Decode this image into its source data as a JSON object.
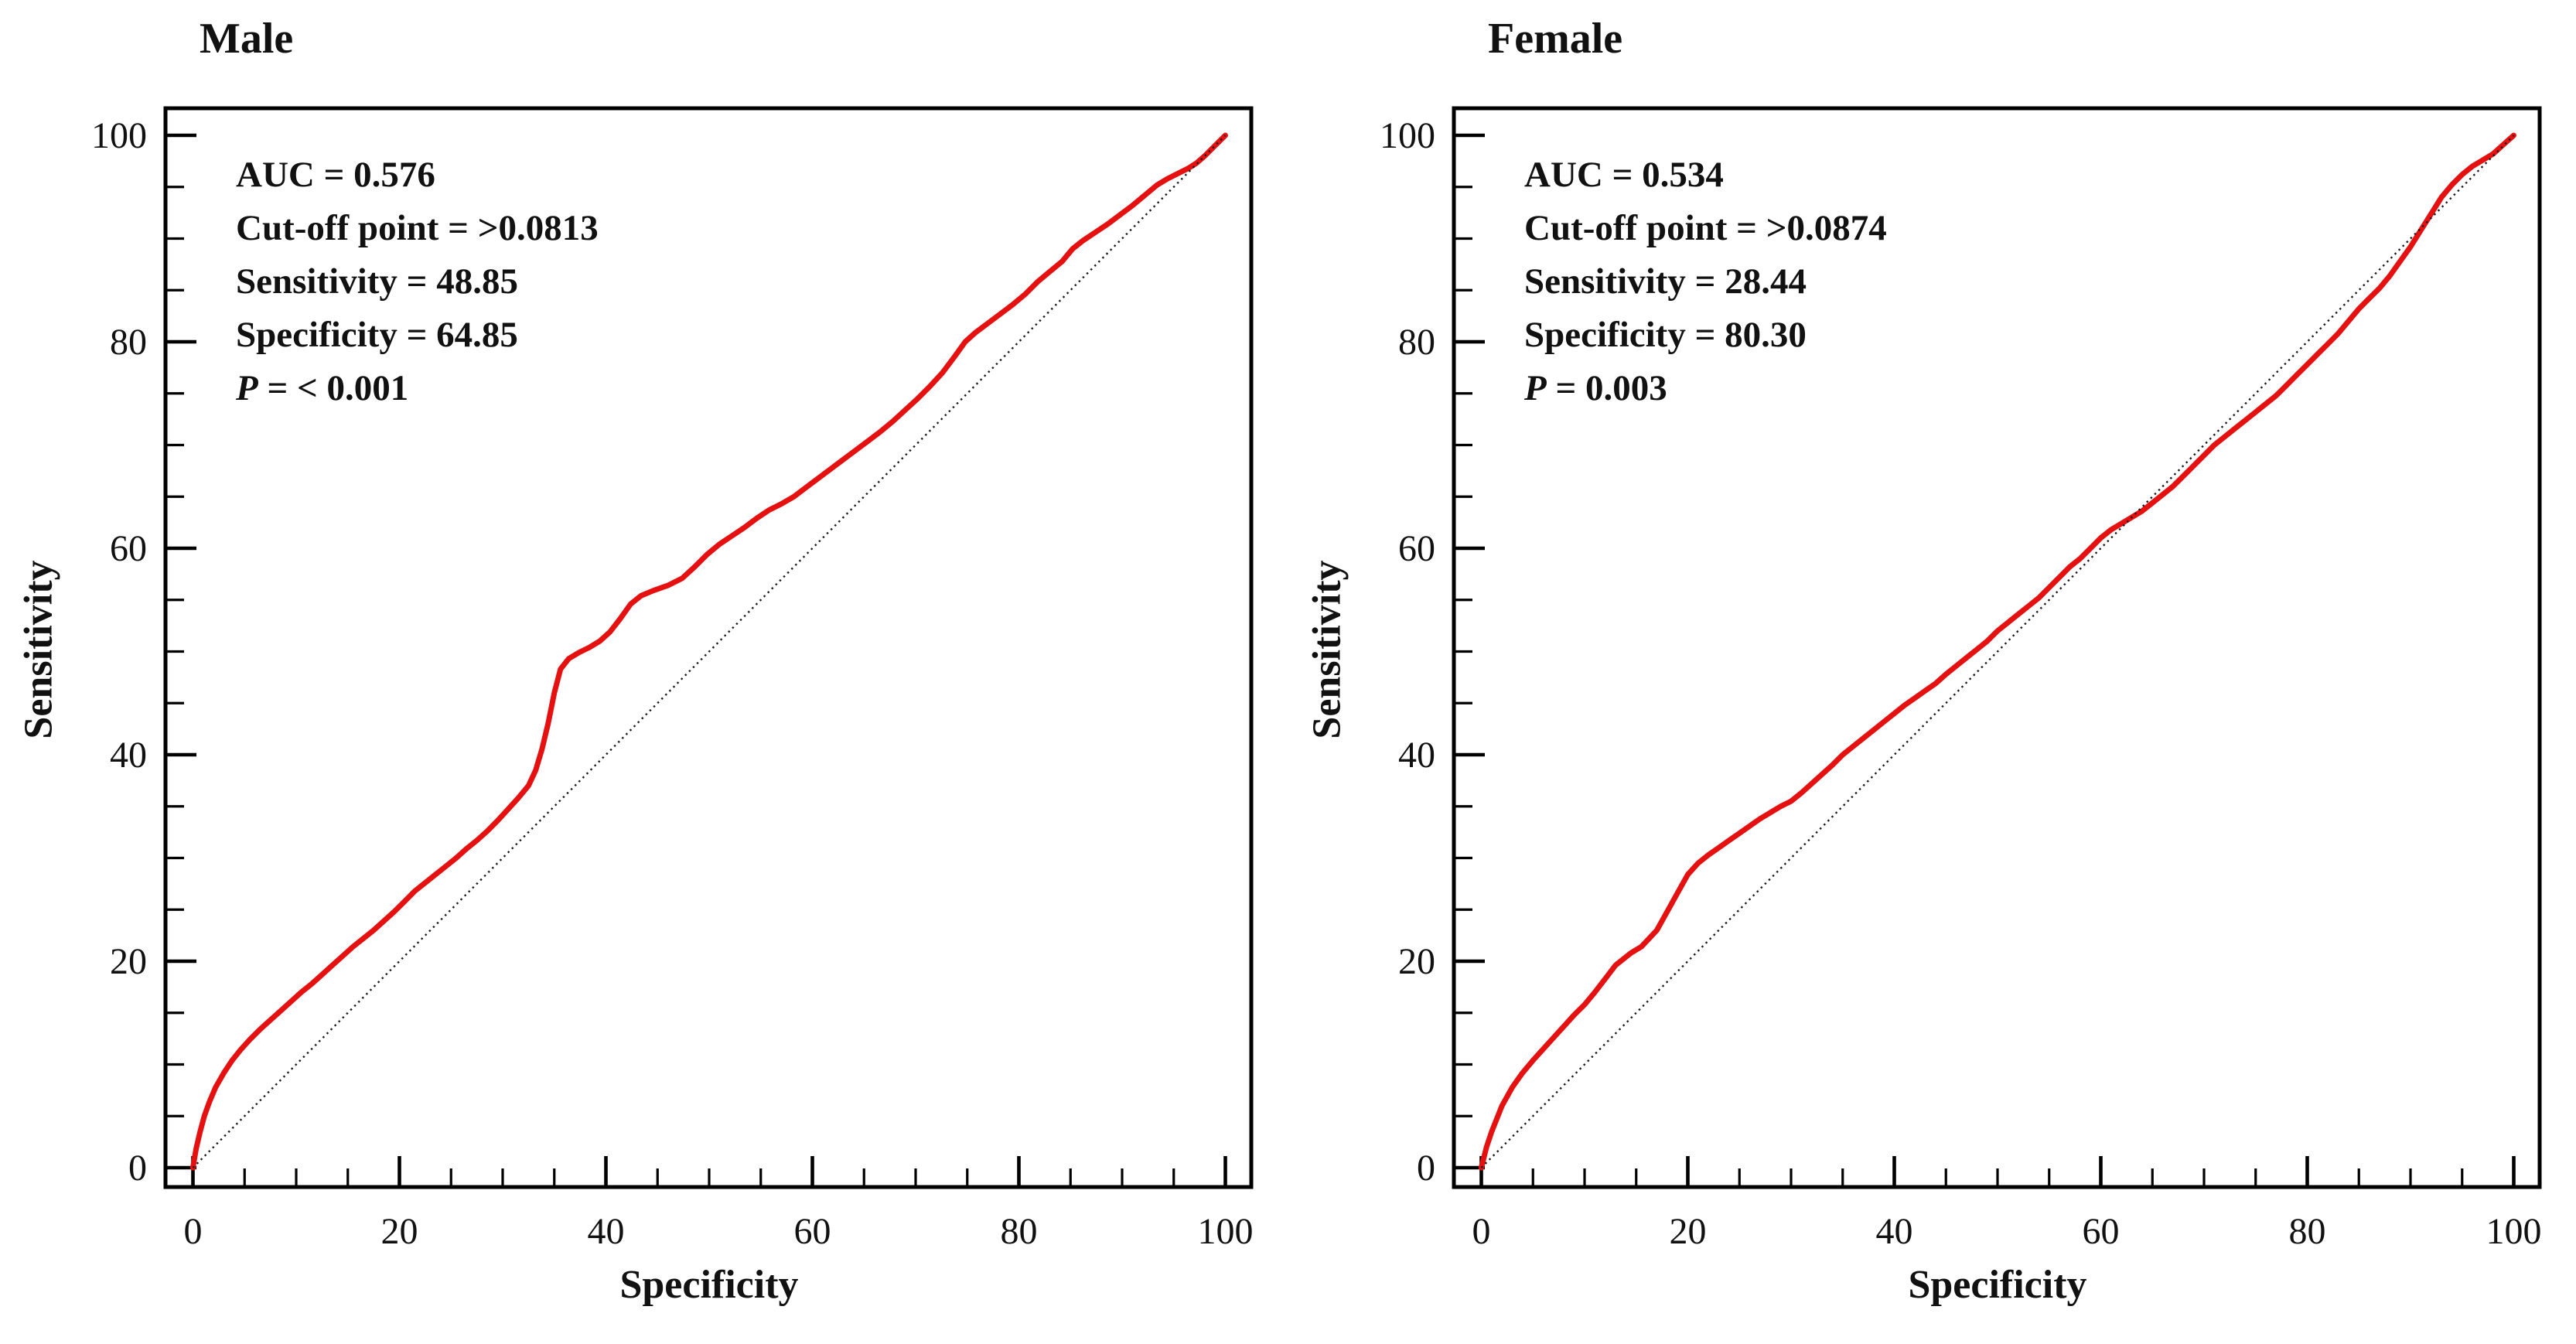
{
  "figure": {
    "background": "#ffffff",
    "curve_color": "#e51111",
    "diagonal_color": "#1a1a1a",
    "axis_color": "#000000",
    "text_color": "#111111"
  },
  "chart_data": [
    {
      "type": "line",
      "title": "Male",
      "xlabel": "Specificity",
      "ylabel": "Sensitivity",
      "xlim": [
        -2.6,
        102.6
      ],
      "ylim": [
        -2.0,
        102.8
      ],
      "xticks": [
        0,
        20,
        40,
        60,
        80,
        100
      ],
      "yticks": [
        0,
        20,
        40,
        60,
        80,
        100
      ],
      "minor_tick_step": 5,
      "grid": false,
      "legend": "none",
      "annotation": {
        "auc": "AUC = 0.576",
        "cutoff": "Cut-off point = >0.0813",
        "sensitivity": "Sensitivity = 48.85",
        "specificity": "Specificity = 64.85",
        "p_label": "P",
        "p_value": " = < 0.001"
      },
      "series": [
        {
          "name": "roc-curve",
          "color": "#e51111",
          "style": "solid",
          "x": [
            0,
            0.3,
            0.7,
            1.1,
            1.6,
            2.2,
            3,
            3.8,
            4.6,
            5.5,
            6.5,
            7.5,
            8.5,
            9.5,
            10.5,
            11.5,
            12.5,
            13.5,
            14.5,
            15.5,
            16.5,
            17.5,
            18.5,
            19.5,
            20.5,
            21.5,
            22.5,
            23.5,
            24.5,
            25.5,
            26.5,
            27.5,
            28.5,
            29.5,
            30.5,
            31.5,
            32.5,
            33.2,
            33.8,
            34.4,
            35,
            35.6,
            36.4,
            37.4,
            38.4,
            39.4,
            40.4,
            41.4,
            42.4,
            43.4,
            44.6,
            46,
            47.4,
            48.6,
            49.8,
            51,
            52.2,
            53.4,
            54.6,
            55.8,
            57,
            58.2,
            59.4,
            60.6,
            61.8,
            63,
            64.2,
            65.4,
            66.6,
            67.8,
            69,
            70.2,
            71.4,
            72.6,
            73.8,
            74.8,
            75.8,
            77,
            78.2,
            79.4,
            80.6,
            81.8,
            83,
            84.2,
            85.2,
            86.2,
            87.4,
            88.6,
            89.8,
            91,
            92.2,
            93.4,
            94.4,
            95.4,
            96.4,
            97.2,
            98,
            99,
            100
          ],
          "y": [
            0,
            1.8,
            3.5,
            5,
            6.4,
            7.8,
            9.2,
            10.4,
            11.4,
            12.4,
            13.4,
            14.3,
            15.2,
            16.1,
            17,
            17.8,
            18.7,
            19.6,
            20.5,
            21.4,
            22.2,
            23,
            23.9,
            24.8,
            25.8,
            26.8,
            27.6,
            28.4,
            29.2,
            30,
            30.9,
            31.7,
            32.6,
            33.6,
            34.7,
            35.8,
            37,
            38.5,
            40.5,
            43,
            46,
            48.3,
            49.3,
            49.9,
            50.4,
            51,
            51.9,
            53.2,
            54.6,
            55.4,
            55.9,
            56.4,
            57.1,
            58.2,
            59.4,
            60.4,
            61.2,
            62,
            62.9,
            63.7,
            64.3,
            65,
            65.9,
            66.8,
            67.7,
            68.6,
            69.5,
            70.4,
            71.3,
            72.3,
            73.4,
            74.5,
            75.7,
            77,
            78.6,
            80,
            80.9,
            81.8,
            82.7,
            83.6,
            84.6,
            85.8,
            86.8,
            87.8,
            89,
            89.8,
            90.6,
            91.4,
            92.3,
            93.2,
            94.2,
            95.2,
            95.8,
            96.3,
            96.8,
            97.3,
            98,
            99,
            100
          ]
        },
        {
          "name": "reference-diagonal",
          "color": "#1a1a1a",
          "style": "dotted",
          "x": [
            0,
            100
          ],
          "y": [
            0,
            100
          ]
        }
      ]
    },
    {
      "type": "line",
      "title": "Female",
      "xlabel": "Specificity",
      "ylabel": "Sensitivity",
      "xlim": [
        -2.6,
        102.6
      ],
      "ylim": [
        -2.0,
        102.8
      ],
      "xticks": [
        0,
        20,
        40,
        60,
        80,
        100
      ],
      "yticks": [
        0,
        20,
        40,
        60,
        80,
        100
      ],
      "minor_tick_step": 5,
      "grid": false,
      "legend": "none",
      "annotation": {
        "auc": "AUC = 0.534",
        "cutoff": "Cut-off point = >0.0874",
        "sensitivity": "Sensitivity = 28.44",
        "specificity": "Specificity = 80.30",
        "p_label": "P",
        "p_value": " = 0.003"
      },
      "series": [
        {
          "name": "roc-curve",
          "color": "#e51111",
          "style": "solid",
          "x": [
            0,
            0.5,
            1,
            2,
            3,
            4,
            5,
            6,
            7,
            8,
            9,
            10,
            11,
            12,
            13,
            14.5,
            15.5,
            17,
            18,
            19,
            20,
            21,
            22,
            23,
            24,
            25,
            26,
            27,
            28,
            29,
            30,
            31,
            32,
            33,
            34,
            35,
            36,
            37,
            38,
            39,
            40,
            41,
            42,
            43,
            44,
            45,
            46,
            47,
            48,
            49,
            50,
            51,
            52,
            53,
            54,
            55,
            56,
            57,
            58,
            59,
            60,
            61,
            62,
            63,
            64,
            65,
            66,
            67,
            68,
            69,
            70,
            71,
            72,
            73,
            74,
            75,
            76,
            77,
            78,
            79,
            80,
            81,
            82,
            83,
            84,
            85,
            86,
            87,
            88,
            89,
            90,
            91,
            92,
            93,
            94,
            95,
            96,
            97,
            98,
            99,
            100
          ],
          "y": [
            0,
            2,
            3.5,
            6,
            7.8,
            9.2,
            10.4,
            11.5,
            12.6,
            13.7,
            14.8,
            15.8,
            17,
            18.3,
            19.6,
            20.8,
            21.4,
            23,
            24.8,
            26.6,
            28.4,
            29.5,
            30.3,
            31,
            31.7,
            32.4,
            33.1,
            33.8,
            34.4,
            35,
            35.5,
            36.3,
            37.2,
            38.1,
            39,
            40,
            40.8,
            41.6,
            42.4,
            43.2,
            44,
            44.8,
            45.5,
            46.2,
            46.9,
            47.8,
            48.6,
            49.4,
            50.2,
            51,
            52,
            52.8,
            53.6,
            54.4,
            55.2,
            56.2,
            57.2,
            58.2,
            59,
            60,
            61,
            61.8,
            62.4,
            63,
            63.6,
            64.4,
            65.2,
            66,
            67,
            68,
            69,
            70,
            70.8,
            71.6,
            72.4,
            73.2,
            74,
            74.8,
            75.8,
            76.8,
            77.8,
            78.8,
            79.8,
            80.8,
            82,
            83.2,
            84.2,
            85.2,
            86.4,
            87.8,
            89.2,
            90.8,
            92.4,
            94,
            95.2,
            96.2,
            97,
            97.6,
            98.2,
            99.1,
            100
          ]
        },
        {
          "name": "reference-diagonal",
          "color": "#1a1a1a",
          "style": "dotted",
          "x": [
            0,
            100
          ],
          "y": [
            0,
            100
          ]
        }
      ]
    }
  ]
}
